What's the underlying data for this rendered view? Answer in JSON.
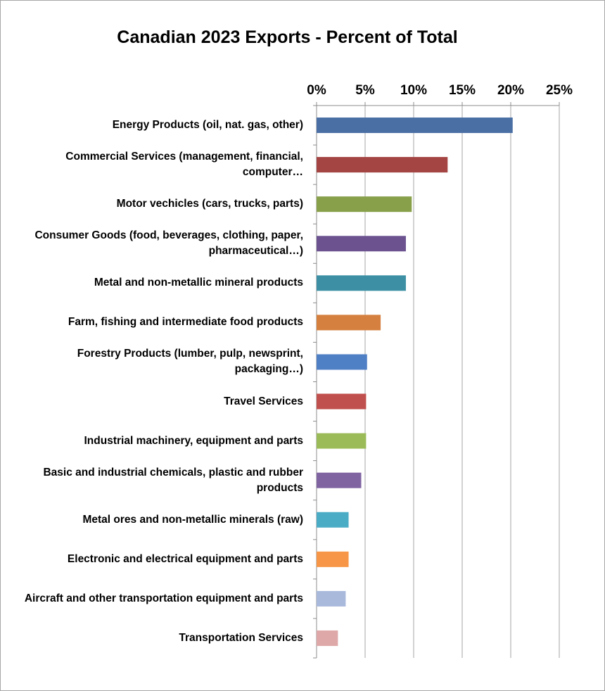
{
  "chart_data": {
    "type": "bar",
    "orientation": "horizontal",
    "title": "Canadian 2023 Exports - Percent of Total",
    "xlabel": "",
    "ylabel": "",
    "xlim": [
      0,
      25
    ],
    "x_ticks": [
      "0%",
      "5%",
      "10%",
      "15%",
      "20%",
      "25%"
    ],
    "x_axis_position": "top",
    "grid": "vertical",
    "legend": "none",
    "categories": [
      "Energy Products (oil, nat. gas, other)",
      "Commercial Services (management, financial, computer…",
      "Motor vechicles (cars, trucks, parts)",
      "Consumer Goods (food, beverages, clothing, paper, pharmaceutical…)",
      "Metal and non-metallic mineral products",
      "Farm, fishing and intermediate food products",
      "Forestry Products (lumber, pulp, newsprint, packaging…)",
      "Travel Services",
      "Industrial machinery, equipment and parts",
      "Basic and industrial chemicals, plastic and rubber products",
      "Metal ores and non-metallic minerals (raw)",
      "Electronic and electrical equipment and parts",
      "Aircraft and other transportation equipment and parts",
      "Transportation Services"
    ],
    "values": [
      20.2,
      13.5,
      9.8,
      9.2,
      9.2,
      6.6,
      5.2,
      5.1,
      5.1,
      4.6,
      3.3,
      3.3,
      3.0,
      2.2
    ],
    "colors": [
      "#4a6fa5",
      "#a44443",
      "#87a049",
      "#6c5390",
      "#3d90a4",
      "#d6803f",
      "#4f7fc4",
      "#c0504d",
      "#9bbb59",
      "#8064a2",
      "#4bacc6",
      "#f79646",
      "#a8b9dc",
      "#dea8a8"
    ]
  }
}
